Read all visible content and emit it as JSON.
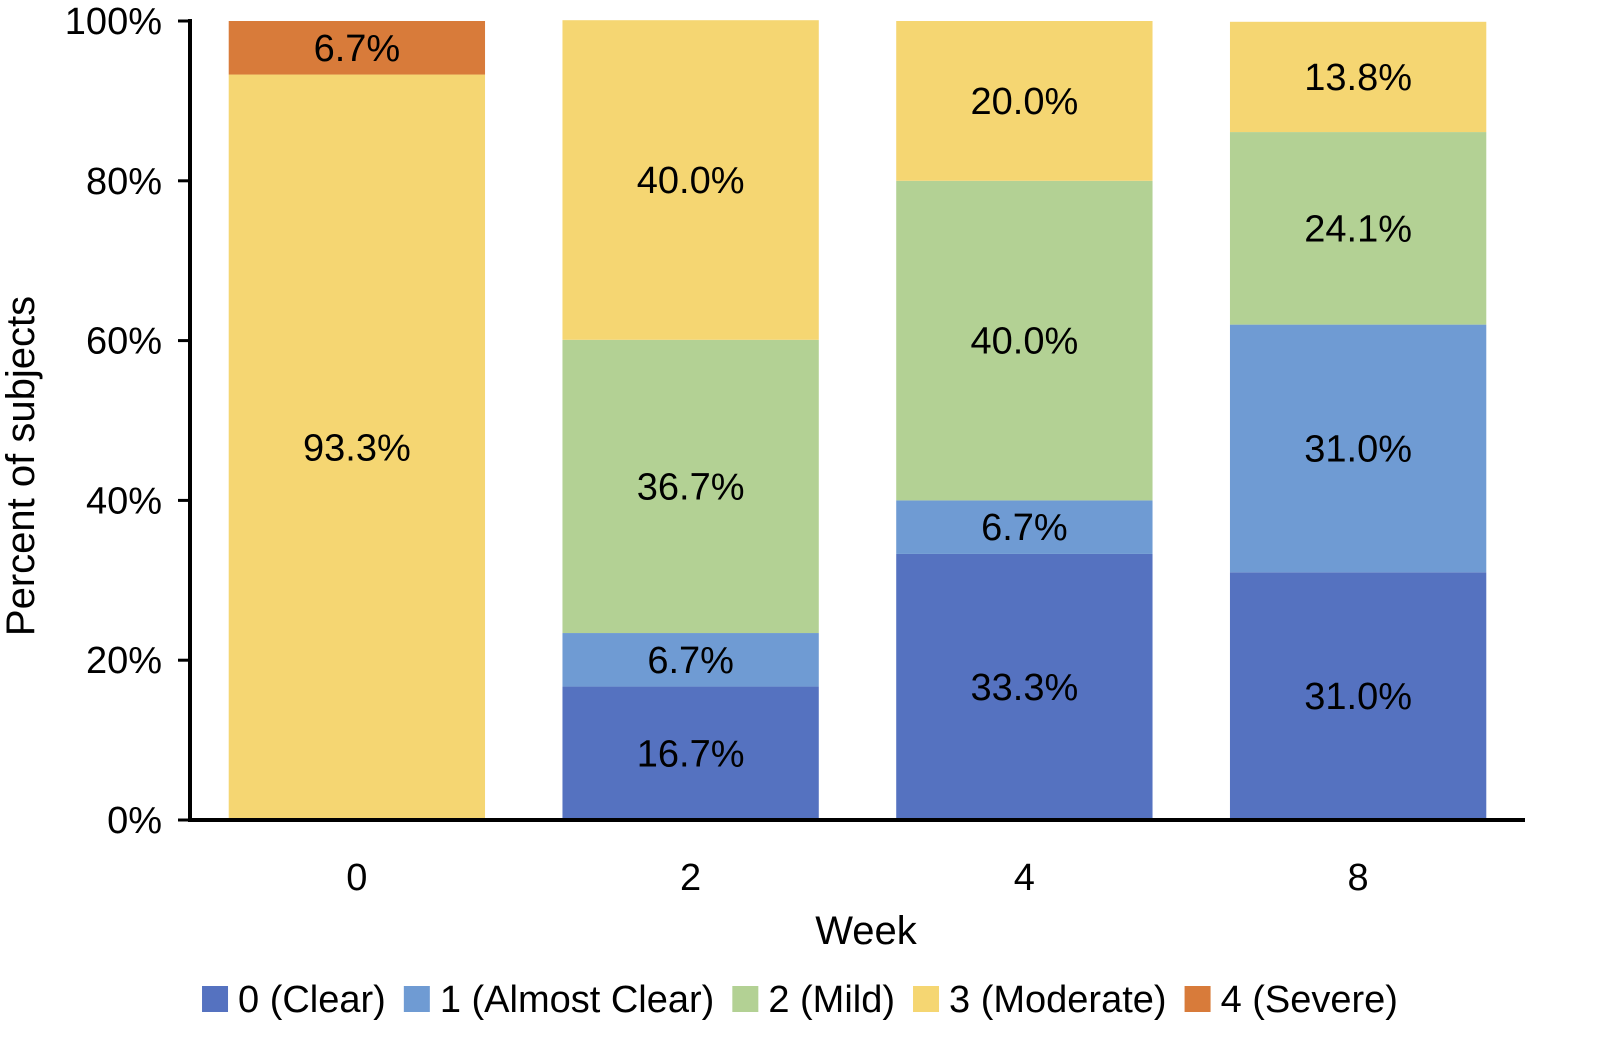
{
  "chart_data": {
    "type": "bar",
    "stacked": true,
    "categories": [
      "0",
      "2",
      "4",
      "8"
    ],
    "series": [
      {
        "name": "0 (Clear)",
        "color": "#5572c0",
        "values": [
          0,
          16.7,
          33.3,
          31.0
        ],
        "labels": [
          "",
          "16.7%",
          "33.3%",
          "31.0%"
        ]
      },
      {
        "name": "1 (Almost Clear)",
        "color": "#6f9bd3",
        "values": [
          0,
          6.7,
          6.7,
          31.0
        ],
        "labels": [
          "",
          "6.7%",
          "6.7%",
          "31.0%"
        ]
      },
      {
        "name": "2 (Mild)",
        "color": "#b3d194",
        "values": [
          0,
          36.7,
          40.0,
          24.1
        ],
        "labels": [
          "",
          "36.7%",
          "40.0%",
          "24.1%"
        ]
      },
      {
        "name": "3 (Moderate)",
        "color": "#f5d672",
        "values": [
          93.3,
          40.0,
          20.0,
          13.8
        ],
        "labels": [
          "93.3%",
          "40.0%",
          "20.0%",
          "13.8%"
        ]
      },
      {
        "name": "4 (Severe)",
        "color": "#d87b3a",
        "values": [
          6.7,
          0,
          0,
          0
        ],
        "labels": [
          "6.7%",
          "",
          "",
          ""
        ]
      }
    ],
    "yticks": [
      "0%",
      "20%",
      "40%",
      "60%",
      "80%",
      "100%"
    ],
    "ylim": [
      0,
      100
    ],
    "xlabel": "Week",
    "ylabel": "Percent of subjects",
    "grid": false,
    "legend_position": "bottom"
  }
}
